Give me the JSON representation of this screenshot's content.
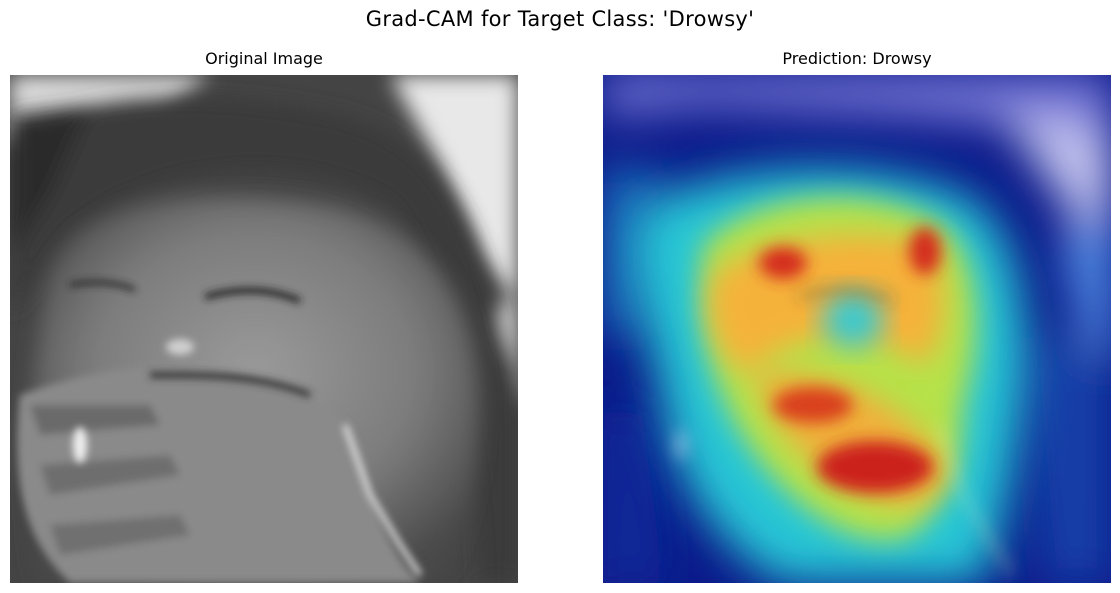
{
  "figure": {
    "suptitle": "Grad-CAM for Target Class: 'Drowsy'"
  },
  "panels": [
    {
      "title": "Original Image",
      "content": "grayscale-face-photo"
    },
    {
      "title": "Prediction: Drowsy",
      "content": "gradcam-heatmap-overlay"
    }
  ],
  "colors": {
    "background": "#ffffff",
    "heatmap_low": "#0b1a8a",
    "heatmap_mid": "#2ad0e0",
    "heatmap_high": "#d42a1e"
  }
}
